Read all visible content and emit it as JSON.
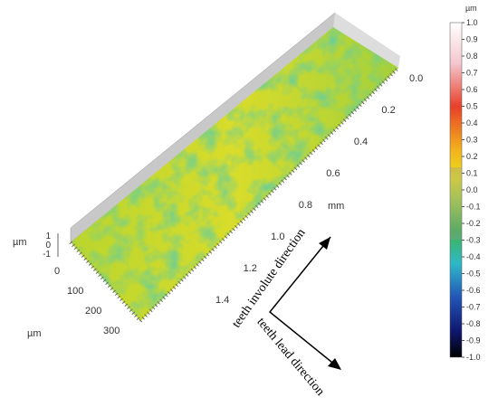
{
  "colorbar": {
    "unit": "µm",
    "ticks": [
      "1.0",
      "0.9",
      "0.8",
      "0.7",
      "0.6",
      "0.5",
      "0.4",
      "0.3",
      "0.2",
      "0.1",
      "0.0",
      "-0.1",
      "-0.2",
      "-0.3",
      "-0.4",
      "-0.5",
      "-0.6",
      "-0.7",
      "-0.8",
      "-0.9",
      "-1.0"
    ]
  },
  "axes": {
    "length_unit": "mm",
    "length_ticks": [
      "0.0",
      "0.2",
      "0.4",
      "0.6",
      "0.8",
      "1.0",
      "1.2",
      "1.4"
    ],
    "width_unit": "µm",
    "width_ticks": [
      "0",
      "100",
      "200",
      "300"
    ],
    "height_unit": "µm",
    "height_ticks": [
      "1",
      "0",
      "-1"
    ]
  },
  "annotations": {
    "involute": "teeth involute direction",
    "lead": "teeth lead direction"
  }
}
